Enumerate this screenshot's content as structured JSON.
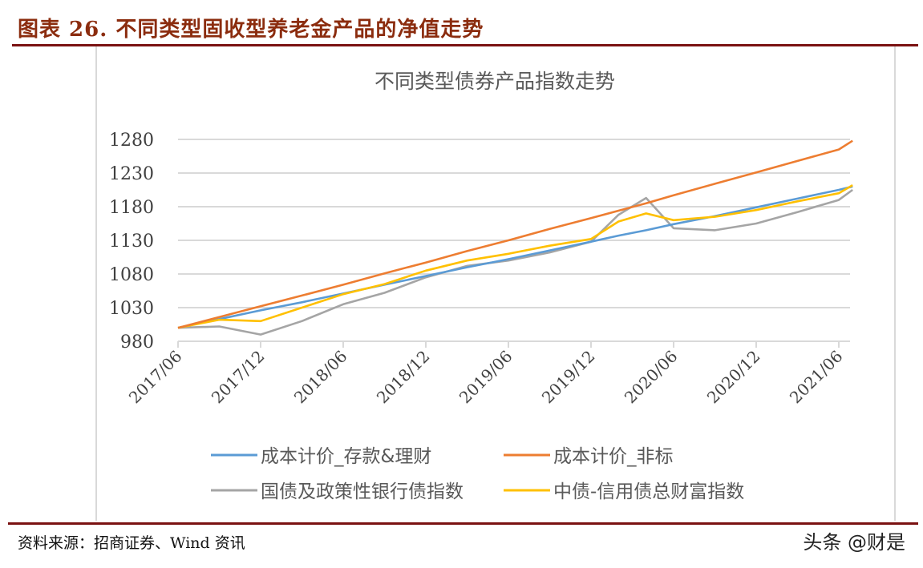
{
  "figure": {
    "caption": "图表 26. 不同类型固收型养老金产品的净值走势",
    "source": "资料来源：招商证券、Wind 资讯",
    "watermark": "头条 @财是"
  },
  "colors": {
    "caption": "#8b2c0e",
    "rule": "#7a1111",
    "grid": "#d9d9d9",
    "blue": "#5b9bd5",
    "orange": "#ed7d31",
    "gray": "#a5a5a5",
    "yellow": "#ffc000"
  },
  "chart_data": {
    "type": "line",
    "title": "不同类型债券产品指数走势",
    "xlabel": "",
    "ylabel": "",
    "ylim": [
      980,
      1280
    ],
    "yticks": [
      980,
      1030,
      1080,
      1130,
      1180,
      1230,
      1280
    ],
    "grid": true,
    "legend_position": "bottom",
    "categories": [
      "2017/06",
      "2017/12",
      "2018/06",
      "2018/12",
      "2019/06",
      "2019/12",
      "2020/06",
      "2020/12",
      "2021/06"
    ],
    "x": [
      "2017/06",
      "2017/09",
      "2017/12",
      "2018/03",
      "2018/06",
      "2018/09",
      "2018/12",
      "2019/03",
      "2019/06",
      "2019/09",
      "2019/12",
      "2020/02",
      "2020/04",
      "2020/06",
      "2020/09",
      "2020/12",
      "2021/03",
      "2021/06",
      "2021/07"
    ],
    "series": [
      {
        "name": "成本计价_存款&理财",
        "color": "#5b9bd5",
        "values": [
          1000,
          1013,
          1026,
          1038,
          1051,
          1064,
          1077,
          1090,
          1102,
          1115,
          1128,
          1137,
          1145,
          1154,
          1166,
          1179,
          1192,
          1205,
          1210
        ]
      },
      {
        "name": "成本计价_非标",
        "color": "#ed7d31",
        "values": [
          1000,
          1016,
          1032,
          1048,
          1064,
          1081,
          1097,
          1114,
          1130,
          1147,
          1163,
          1174,
          1185,
          1197,
          1214,
          1231,
          1248,
          1265,
          1278
        ]
      },
      {
        "name": "国债及政策性银行债指数",
        "color": "#a5a5a5",
        "values": [
          1000,
          1002,
          990,
          1010,
          1035,
          1052,
          1075,
          1092,
          1100,
          1112,
          1128,
          1168,
          1193,
          1148,
          1145,
          1155,
          1172,
          1190,
          1205
        ]
      },
      {
        "name": "中债-信用债总财富指数",
        "color": "#ffc000",
        "values": [
          1000,
          1012,
          1010,
          1030,
          1050,
          1065,
          1085,
          1100,
          1110,
          1122,
          1132,
          1158,
          1170,
          1160,
          1165,
          1175,
          1188,
          1200,
          1212
        ]
      }
    ]
  }
}
